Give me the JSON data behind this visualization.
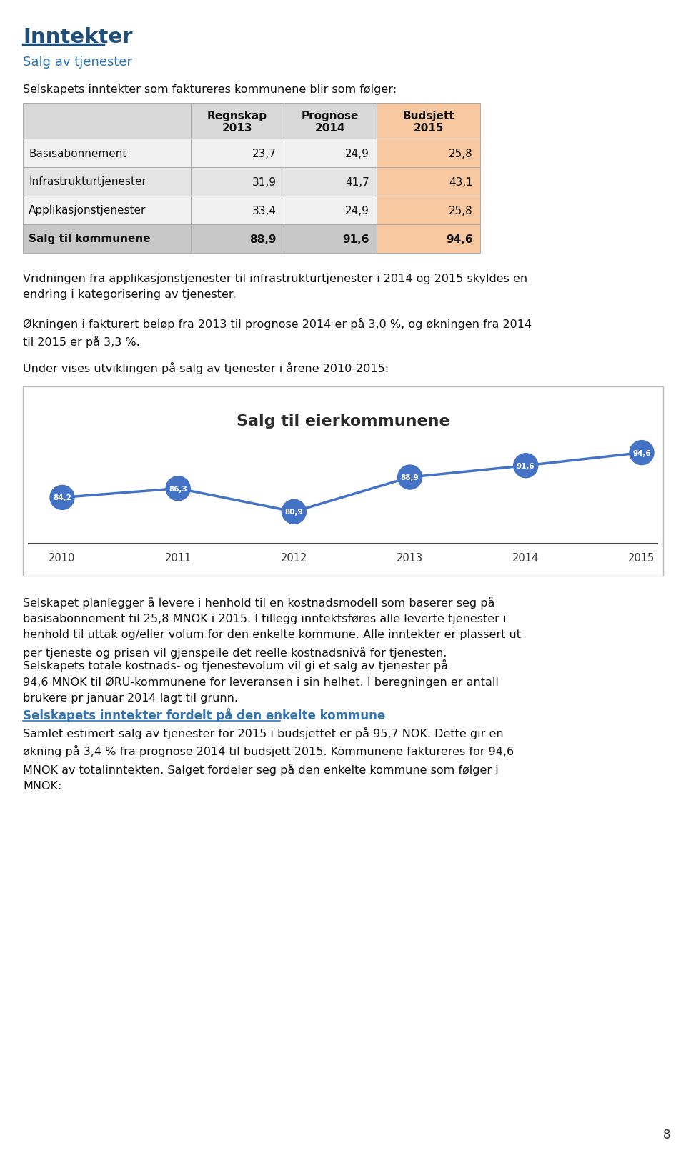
{
  "title_main": "Inntekter",
  "title_sub": "Salg av tjenester",
  "intro_text": "Selskapets inntekter som faktureres kommunene blir som følger:",
  "table_headers": [
    "",
    "Regnskap\n2013",
    "Prognose\n2014",
    "Budsjett\n2015"
  ],
  "table_rows": [
    [
      "Basisabonnement",
      "23,7",
      "24,9",
      "25,8"
    ],
    [
      "Infrastrukturtjenester",
      "31,9",
      "41,7",
      "43,1"
    ],
    [
      "Applikasjonstjenester",
      "33,4",
      "24,9",
      "25,8"
    ],
    [
      "Salg til kommunene",
      "88,9",
      "91,6",
      "94,6"
    ]
  ],
  "budsjett_col_color": "#F8C8A0",
  "header_gray_color": "#D8D8D8",
  "last_row_gray": "#C8C8C8",
  "row_colors": [
    "#F0F0F0",
    "#E4E4E4"
  ],
  "para1": "Vridningen fra applikasjonstjenester til infrastrukturtjenester i 2014 og 2015 skyldes en\nendring i kategorisering av tjenester.",
  "para2": "Økningen i fakturert beløp fra 2013 til prognose 2014 er på 3,0 %, og økningen fra 2014\ntil 2015 er på 3,3 %.",
  "para3": "Under vises utviklingen på salg av tjenester i årene 2010-2015:",
  "chart_title": "Salg til eierkommunene",
  "chart_years": [
    2010,
    2011,
    2012,
    2013,
    2014,
    2015
  ],
  "chart_values": [
    84.2,
    86.3,
    80.9,
    88.9,
    91.6,
    94.6
  ],
  "chart_labels": [
    "84,2",
    "86,3",
    "80,9",
    "88,9",
    "91,6",
    "94,6"
  ],
  "chart_line_color": "#4472C4",
  "chart_marker_color": "#4472C4",
  "para4": "Selskapet planlegger å levere i henhold til en kostnadsmodell som baserer seg på\nbasisabonnement til 25,8 MNOK i 2015. I tillegg inntektsføres alle leverte tjenester i\nhenhold til uttak og/eller volum for den enkelte kommune. Alle inntekter er plassert ut\nper tjeneste og prisen vil gjenspeile det reelle kostnadsnivå for tjenesten.",
  "para5": "Selskapets totale kostnads- og tjenestevolum vil gi et salg av tjenester på\n94,6 MNOK til ØRU-kommunene for leveransen i sin helhet. I beregningen er antall\nbrukere pr januar 2014 lagt til grunn.",
  "section2_title": "Selskapets inntekter fordelt på den enkelte kommune",
  "para6": "Samlet estimert salg av tjenester for 2015 i budsjettet er på 95,7 NOK. Dette gir en\nøkning på 3,4 % fra prognose 2014 til budsjett 2015. Kommunene faktureres for 94,6\nMNOK av totalinntekten. Salget fordeler seg på den enkelte kommune som følger i\nMNOK:",
  "page_number": "8",
  "blue_dark": "#1F4E79",
  "blue_light": "#2E74B5",
  "text_color": "#111111",
  "bg_color": "#FFFFFF",
  "table_border_color": "#AAAAAA"
}
